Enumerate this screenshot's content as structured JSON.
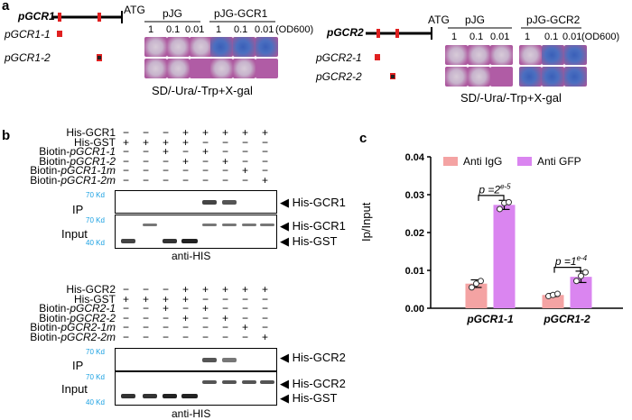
{
  "panel_a": {
    "letter": "a",
    "left": {
      "promoter": "pGCR1",
      "fragments": [
        "pGCR1-1",
        "pGCR1-2"
      ],
      "atg": "ATG",
      "group1": "pJG",
      "group2": "pJG-GCR1",
      "dilutions": [
        "1",
        "0.1",
        "0.01",
        "1",
        "0.1",
        "0.01"
      ],
      "od_label": "(OD600)",
      "medium": "SD/-Ura/-Trp+X-gal"
    },
    "right": {
      "promoter": "pGCR2",
      "fragments": [
        "pGCR2-1",
        "pGCR2-2"
      ],
      "atg": "ATG",
      "group1": "pJG",
      "group2": "pJG-GCR2",
      "dilutions": [
        "1",
        "0.1",
        "0.01",
        "1",
        "0.1",
        "0.01"
      ],
      "od_label": "(OD600)",
      "medium": "SD/-Ura/-Trp+X-gal"
    },
    "colors": {
      "blue_colony": "#3a5fb8",
      "plate": "#b05ca5",
      "marker": "#e02020"
    }
  },
  "panel_b": {
    "letter": "b",
    "top": {
      "rows": [
        {
          "label": "His-GCR1",
          "signs": [
            "−",
            "−",
            "−",
            "+",
            "+",
            "+",
            "+",
            "+"
          ]
        },
        {
          "label": "His-GST",
          "signs": [
            "+",
            "+",
            "+",
            "+",
            "−",
            "−",
            "−",
            "−"
          ]
        },
        {
          "label": "Biotin-pGCR1-1",
          "signs": [
            "−",
            "−",
            "+",
            "−",
            "+",
            "−",
            "−",
            "−"
          ]
        },
        {
          "label": "Biotin-pGCR1-2",
          "signs": [
            "−",
            "−",
            "−",
            "+",
            "−",
            "+",
            "−",
            "−"
          ]
        },
        {
          "label": "Biotin-pGCR1-1m",
          "signs": [
            "−",
            "−",
            "−",
            "−",
            "−",
            "−",
            "+",
            "−"
          ]
        },
        {
          "label": "Biotin-pGCR1-2m",
          "signs": [
            "−",
            "−",
            "−",
            "−",
            "−",
            "−",
            "−",
            "+"
          ]
        }
      ],
      "ip_label": "IP",
      "input_label": "Input",
      "marker_70": "70 Kd",
      "marker_40": "40 Kd",
      "band_ip": "His-GCR1",
      "band_input1": "His-GCR1",
      "band_input2": "His-GST",
      "antibody": "anti-HIS"
    },
    "bottom": {
      "rows": [
        {
          "label": "His-GCR2",
          "signs": [
            "−",
            "−",
            "−",
            "+",
            "+",
            "+",
            "+",
            "+"
          ]
        },
        {
          "label": "His-GST",
          "signs": [
            "+",
            "+",
            "+",
            "+",
            "−",
            "−",
            "−",
            "−"
          ]
        },
        {
          "label": "Biotin-pGCR2-1",
          "signs": [
            "−",
            "−",
            "+",
            "−",
            "+",
            "−",
            "−",
            "−"
          ]
        },
        {
          "label": "Biotin-pGCR2-2",
          "signs": [
            "−",
            "−",
            "−",
            "+",
            "−",
            "+",
            "−",
            "−"
          ]
        },
        {
          "label": "Biotin-pGCR2-1m",
          "signs": [
            "−",
            "−",
            "−",
            "−",
            "−",
            "−",
            "+",
            "−"
          ]
        },
        {
          "label": "Biotin-pGCR2-2m",
          "signs": [
            "−",
            "−",
            "−",
            "−",
            "−",
            "−",
            "−",
            "+"
          ]
        }
      ],
      "ip_label": "IP",
      "input_label": "Input",
      "marker_70a": "70 Kd",
      "marker_70b": "70 Kd",
      "marker_40": "40 Kd",
      "band_ip": "His-GCR2",
      "band_input1": "His-GCR2",
      "band_input2": "His-GST",
      "antibody": "anti-HIS"
    },
    "colors": {
      "marker_text": "#1ba1e2"
    }
  },
  "panel_c": {
    "letter": "c",
    "chart_data": {
      "type": "bar",
      "categories": [
        "pGCR1-1",
        "pGCR1-2"
      ],
      "series": [
        {
          "name": "Anti IgG",
          "values": [
            0.0065,
            0.0035
          ],
          "error": [
            0.001,
            0.0004
          ],
          "points": [
            [
              0.0055,
              0.0065,
              0.0072
            ],
            [
              0.0032,
              0.0035,
              0.0038
            ]
          ],
          "color": "#f4a3a3"
        },
        {
          "name": "Anti GFP",
          "values": [
            0.0273,
            0.0083
          ],
          "error": [
            0.0012,
            0.0015
          ],
          "points": [
            [
              0.0262,
              0.0278,
              0.028
            ],
            [
              0.0072,
              0.0085,
              0.0095
            ]
          ],
          "color": "#da85f0"
        }
      ],
      "ylabel": "Ip/Input",
      "ylim": [
        0,
        0.04
      ],
      "yticks": [
        "0.00",
        "0.01",
        "0.02",
        "0.03",
        "0.04"
      ],
      "annotations": [
        "p = 2e-5",
        "p = 1e-4"
      ],
      "annotation_display": [
        {
          "base": "p =2",
          "exp": "e-5"
        },
        {
          "base": "p =1",
          "exp": "e-4"
        }
      ],
      "legend_position": "top"
    }
  }
}
